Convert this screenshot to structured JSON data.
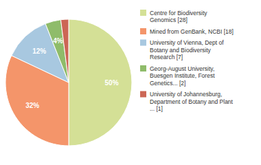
{
  "chart_data": {
    "type": "pie",
    "categories": [
      "Centre for Biodiversity\nGenomics [28]",
      "Mined from GenBank, NCBI [18]",
      "University of Vienna, Dept of\nBotany and Biodiversity\nResearch [7]",
      "Georg-August University,\nBuesgen Institute, Forest\nGenetics... [2]",
      "University of Johannesburg,\nDepartment of Botany and Plant\n... [1]"
    ],
    "values": [
      50,
      32,
      12,
      4,
      2
    ],
    "value_labels": [
      "50%",
      "32%",
      "12%",
      "4%",
      null
    ],
    "colors": [
      "#d4e096",
      "#f4956a",
      "#a8c8e0",
      "#8fbc6a",
      "#cc6655"
    ],
    "data_labels": true,
    "legend": "right"
  }
}
